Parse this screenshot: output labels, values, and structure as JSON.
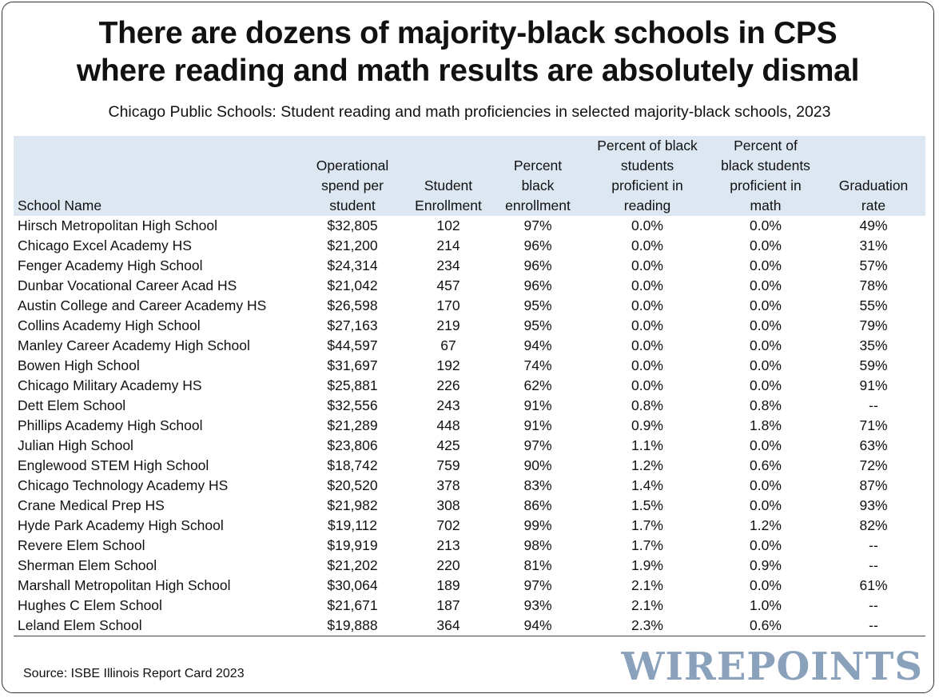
{
  "title": {
    "line1": "There are dozens of majority-black schools in CPS",
    "line2": "where reading and math results are absolutely dismal"
  },
  "subtitle": "Chicago Public Schools: Student reading and math proficiencies in selected majority-black schools, 2023",
  "table": {
    "headers": [
      [
        "School Name"
      ],
      [
        "Operational",
        "spend per",
        "student"
      ],
      [
        "Student",
        "Enrollment"
      ],
      [
        "Percent",
        "black",
        "enrollment"
      ],
      [
        "Percent of black",
        "students",
        "proficient in",
        "reading"
      ],
      [
        "Percent of",
        "black students",
        "proficient in",
        "math"
      ],
      [
        "Graduation",
        "rate"
      ]
    ],
    "rows": [
      [
        "Hirsch Metropolitan High School",
        "$32,805",
        "102",
        "97%",
        "0.0%",
        "0.0%",
        "49%"
      ],
      [
        "Chicago Excel Academy HS",
        "$21,200",
        "214",
        "96%",
        "0.0%",
        "0.0%",
        "31%"
      ],
      [
        "Fenger Academy High School",
        "$24,314",
        "234",
        "96%",
        "0.0%",
        "0.0%",
        "57%"
      ],
      [
        "Dunbar Vocational Career Acad HS",
        "$21,042",
        "457",
        "96%",
        "0.0%",
        "0.0%",
        "78%"
      ],
      [
        "Austin College and Career Academy HS",
        "$26,598",
        "170",
        "95%",
        "0.0%",
        "0.0%",
        "55%"
      ],
      [
        "Collins Academy High School",
        "$27,163",
        "219",
        "95%",
        "0.0%",
        "0.0%",
        "79%"
      ],
      [
        "Manley Career Academy High School",
        "$44,597",
        "67",
        "94%",
        "0.0%",
        "0.0%",
        "35%"
      ],
      [
        "Bowen High School",
        "$31,697",
        "192",
        "74%",
        "0.0%",
        "0.0%",
        "59%"
      ],
      [
        "Chicago Military Academy HS",
        "$25,881",
        "226",
        "62%",
        "0.0%",
        "0.0%",
        "91%"
      ],
      [
        "Dett Elem School",
        "$32,556",
        "243",
        "91%",
        "0.8%",
        "0.8%",
        "--"
      ],
      [
        "Phillips Academy High School",
        "$21,289",
        "448",
        "91%",
        "0.9%",
        "1.8%",
        "71%"
      ],
      [
        "Julian High School",
        "$23,806",
        "425",
        "97%",
        "1.1%",
        "0.0%",
        "63%"
      ],
      [
        "Englewood STEM High School",
        "$18,742",
        "759",
        "90%",
        "1.2%",
        "0.6%",
        "72%"
      ],
      [
        "Chicago Technology Academy HS",
        "$20,520",
        "378",
        "83%",
        "1.4%",
        "0.0%",
        "87%"
      ],
      [
        "Crane Medical Prep HS",
        "$21,982",
        "308",
        "86%",
        "1.5%",
        "0.0%",
        "93%"
      ],
      [
        "Hyde Park Academy High School",
        "$19,112",
        "702",
        "99%",
        "1.7%",
        "1.2%",
        "82%"
      ],
      [
        "Revere Elem School",
        "$19,919",
        "213",
        "98%",
        "1.7%",
        "0.0%",
        "--"
      ],
      [
        "Sherman Elem School",
        "$21,202",
        "220",
        "81%",
        "1.9%",
        "0.9%",
        "--"
      ],
      [
        "Marshall Metropolitan High School",
        "$30,064",
        "189",
        "97%",
        "2.1%",
        "0.0%",
        "61%"
      ],
      [
        "Hughes  C Elem School",
        "$21,671",
        "187",
        "93%",
        "2.1%",
        "1.0%",
        "--"
      ],
      [
        "Leland Elem School",
        "$19,888",
        "364",
        "94%",
        "2.3%",
        "0.6%",
        "--"
      ]
    ]
  },
  "source": "Source: ISBE Illinois Report Card 2023",
  "logo": "WIREPOINTS",
  "colors": {
    "header_bg": "#dce7f1",
    "logo": "#8aa1bb"
  }
}
